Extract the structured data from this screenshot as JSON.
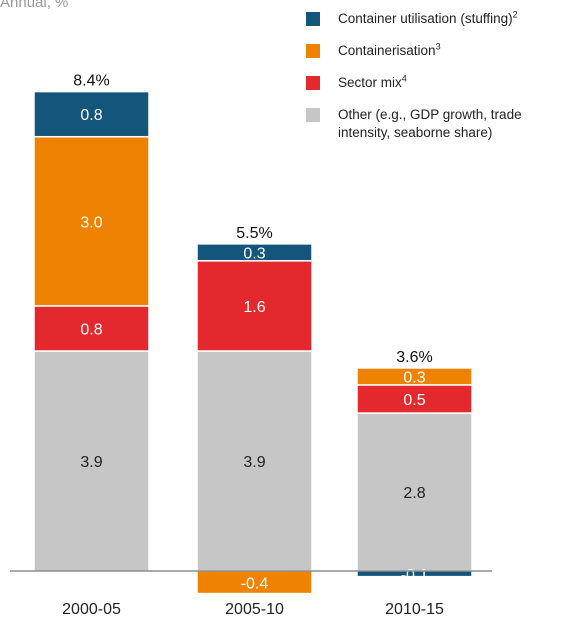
{
  "subtitle": "Annual, %",
  "legend": [
    {
      "label": "Container utilisation (stuffing)",
      "sup": "2",
      "color": "#14557b"
    },
    {
      "label": "Containerisation",
      "sup": "3",
      "color": "#ef8200"
    },
    {
      "label": "Sector mix",
      "sup": "4",
      "color": "#e3292e"
    },
    {
      "label": "Other (e.g., GDP growth, trade intensity, seaborne share)",
      "sup": "",
      "color": "#c6c6c6"
    }
  ],
  "chart_data": {
    "type": "bar",
    "stacked": true,
    "categories": [
      "2000-05",
      "2005-10",
      "2010-15"
    ],
    "series": [
      {
        "name": "Other (e.g., GDP growth, trade intensity, seaborne share)",
        "color": "#c6c6c6",
        "values": [
          3.9,
          3.9,
          2.8
        ],
        "labels": [
          "3.9",
          "3.9",
          "2.8"
        ]
      },
      {
        "name": "Sector mix",
        "color": "#e3292e",
        "values": [
          0.8,
          1.6,
          0.5
        ],
        "labels": [
          "0.8",
          "1.6",
          "0.5"
        ]
      },
      {
        "name": "Containerisation",
        "color": "#ef8200",
        "values": [
          3.0,
          -0.4,
          0.3
        ],
        "labels": [
          "3.0",
          "-0.4",
          "0.3"
        ]
      },
      {
        "name": "Container utilisation (stuffing)",
        "color": "#14557b",
        "values": [
          0.8,
          0.3,
          -0.1
        ],
        "labels": [
          "0.8",
          "0.3",
          "-0.1"
        ]
      }
    ],
    "totals": [
      "8.4%",
      "5.5%",
      "3.6%"
    ],
    "ylim": [
      -0.4,
      8.4
    ]
  }
}
